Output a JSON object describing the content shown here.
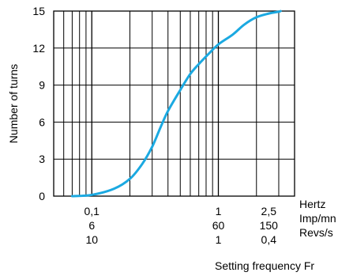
{
  "chart_data": {
    "type": "line",
    "title": "",
    "xlabel": "Setting frequency Fr",
    "ylabel": "Number of turns",
    "x_scale": "log",
    "x_unit": "Hertz",
    "xlim": [
      0.05,
      4
    ],
    "ylim": [
      0,
      15
    ],
    "y_ticks": [
      0,
      3,
      6,
      9,
      12,
      15
    ],
    "grid": true,
    "x_tick_rows": [
      {
        "unit": "Hertz",
        "labels": [
          {
            "hz": 0.1,
            "text": "0,1"
          },
          {
            "hz": 1,
            "text": "1"
          },
          {
            "hz": 2.5,
            "text": "2,5"
          }
        ]
      },
      {
        "unit": "Imp/mn",
        "labels": [
          {
            "hz": 0.1,
            "text": "6"
          },
          {
            "hz": 1,
            "text": "60"
          },
          {
            "hz": 2.5,
            "text": "150"
          }
        ]
      },
      {
        "unit": "Revs/s",
        "labels": [
          {
            "hz": 0.1,
            "text": "10"
          },
          {
            "hz": 1,
            "text": "1"
          },
          {
            "hz": 2.5,
            "text": "0,4"
          }
        ]
      }
    ],
    "series": [
      {
        "color": "#1ba9e1",
        "points": [
          [
            0.07,
            0.0
          ],
          [
            0.1,
            0.1
          ],
          [
            0.15,
            0.6
          ],
          [
            0.2,
            1.4
          ],
          [
            0.25,
            2.6
          ],
          [
            0.3,
            4.0
          ],
          [
            0.35,
            5.6
          ],
          [
            0.4,
            6.9
          ],
          [
            0.5,
            8.6
          ],
          [
            0.6,
            9.9
          ],
          [
            0.7,
            10.7
          ],
          [
            0.85,
            11.6
          ],
          [
            1.0,
            12.3
          ],
          [
            1.3,
            13.1
          ],
          [
            1.6,
            13.9
          ],
          [
            2.0,
            14.5
          ],
          [
            2.5,
            14.8
          ],
          [
            3.0,
            14.95
          ],
          [
            3.1,
            15.0
          ]
        ]
      }
    ]
  }
}
